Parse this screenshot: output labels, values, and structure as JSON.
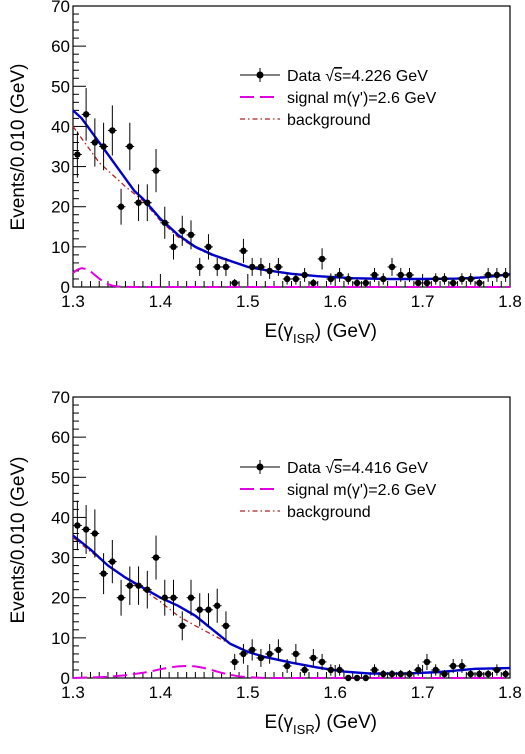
{
  "chart_data": [
    {
      "type": "scatter",
      "xlabel": "E(γ",
      "xlabel_sub": "ISR",
      "xlabel_tail": ") (GeV)",
      "ylabel": "Events/0.010 (GeV)",
      "xlim": [
        1.3,
        1.8
      ],
      "ylim": [
        0,
        70
      ],
      "x_ticks": [
        "1.3",
        "1.4",
        "1.5",
        "1.6",
        "1.7",
        "1.8"
      ],
      "y_ticks": [
        "0",
        "10",
        "20",
        "30",
        "40",
        "50",
        "60",
        "70"
      ],
      "legend": {
        "placement": "top-right",
        "entries": [
          {
            "label": "Data",
            "label_rest": "s=4.226 GeV",
            "kind": "data"
          },
          {
            "label": "signal m(γ')=2.6 GeV",
            "kind": "signal"
          },
          {
            "label": "background",
            "kind": "background"
          }
        ]
      },
      "colors": {
        "data": "#000000",
        "total": "#0000cc",
        "signal": "#e000e0",
        "background": "#b22222"
      },
      "series": [
        {
          "name": "Data",
          "kind": "data",
          "x": [
            1.305,
            1.315,
            1.325,
            1.335,
            1.345,
            1.355,
            1.365,
            1.375,
            1.385,
            1.395,
            1.405,
            1.415,
            1.425,
            1.435,
            1.445,
            1.455,
            1.465,
            1.475,
            1.485,
            1.495,
            1.505,
            1.515,
            1.525,
            1.535,
            1.545,
            1.555,
            1.565,
            1.575,
            1.585,
            1.595,
            1.605,
            1.615,
            1.625,
            1.635,
            1.645,
            1.655,
            1.665,
            1.675,
            1.685,
            1.695,
            1.705,
            1.715,
            1.725,
            1.735,
            1.745,
            1.755,
            1.765,
            1.775,
            1.785,
            1.795
          ],
          "y": [
            33,
            43,
            36,
            35,
            39,
            20,
            35,
            21,
            21,
            29,
            16,
            10,
            14,
            13,
            5,
            10,
            5,
            5,
            1,
            9,
            5,
            5,
            4,
            5,
            2,
            2,
            3,
            1,
            7,
            2,
            3,
            2,
            1,
            1,
            3,
            2,
            5,
            3,
            3,
            1,
            1,
            2,
            2,
            1,
            2,
            2,
            1,
            3,
            3,
            3
          ]
        },
        {
          "name": "",
          "kind": "total",
          "x": [
            1.3,
            1.31,
            1.32,
            1.33,
            1.34,
            1.35,
            1.36,
            1.37,
            1.38,
            1.39,
            1.4,
            1.42,
            1.44,
            1.46,
            1.48,
            1.5,
            1.52,
            1.55,
            1.58,
            1.62,
            1.66,
            1.7,
            1.74,
            1.77,
            1.8
          ],
          "y": [
            44,
            42,
            39,
            36,
            33,
            30,
            27,
            24,
            22,
            19.5,
            17,
            13,
            10,
            8,
            6.5,
            5,
            4.2,
            3.3,
            2.7,
            2.2,
            2.0,
            2.0,
            2.1,
            2.4,
            3.2
          ]
        },
        {
          "name": "",
          "kind": "signal",
          "x": [
            1.3,
            1.305,
            1.31,
            1.315,
            1.32,
            1.325,
            1.33,
            1.335,
            1.34,
            1.345,
            1.35,
            1.36,
            1.37,
            1.4,
            1.5,
            1.6,
            1.7,
            1.8
          ],
          "y": [
            3.5,
            4.3,
            4.7,
            4.5,
            3.9,
            3.0,
            2.1,
            1.3,
            0.7,
            0.35,
            0.15,
            0.03,
            0,
            0,
            0,
            0,
            0,
            0
          ]
        },
        {
          "name": "",
          "kind": "background",
          "x": [
            1.3,
            1.31,
            1.32,
            1.33,
            1.34,
            1.35,
            1.36,
            1.38,
            1.4,
            1.42,
            1.44,
            1.46,
            1.48,
            1.5,
            1.55,
            1.6,
            1.65,
            1.7,
            1.75,
            1.8
          ],
          "y": [
            40,
            37,
            34,
            31,
            29,
            27,
            25,
            21.5,
            16.5,
            12.5,
            9.8,
            7.8,
            6.3,
            5,
            3.3,
            2.4,
            2.0,
            2.0,
            2.3,
            3.0
          ]
        }
      ]
    },
    {
      "type": "scatter",
      "xlabel": "E(γ",
      "xlabel_sub": "ISR",
      "xlabel_tail": ") (GeV)",
      "ylabel": "Events/0.010 (GeV)",
      "xlim": [
        1.3,
        1.8
      ],
      "ylim": [
        0,
        70
      ],
      "x_ticks": [
        "1.3",
        "1.4",
        "1.5",
        "1.6",
        "1.7",
        "1.8"
      ],
      "y_ticks": [
        "0",
        "10",
        "20",
        "30",
        "40",
        "50",
        "60",
        "70"
      ],
      "legend": {
        "placement": "top-right",
        "entries": [
          {
            "label": "Data",
            "label_rest": "s=4.416 GeV",
            "kind": "data"
          },
          {
            "label": "signal m(γ')=2.6 GeV",
            "kind": "signal"
          },
          {
            "label": "background",
            "kind": "background"
          }
        ]
      },
      "colors": {
        "data": "#000000",
        "total": "#0000cc",
        "signal": "#e000e0",
        "background": "#b22222"
      },
      "series": [
        {
          "name": "Data",
          "kind": "data",
          "x": [
            1.305,
            1.315,
            1.325,
            1.335,
            1.345,
            1.355,
            1.365,
            1.375,
            1.385,
            1.395,
            1.405,
            1.415,
            1.425,
            1.435,
            1.445,
            1.455,
            1.465,
            1.475,
            1.485,
            1.495,
            1.505,
            1.515,
            1.525,
            1.535,
            1.545,
            1.555,
            1.565,
            1.575,
            1.585,
            1.595,
            1.605,
            1.615,
            1.625,
            1.635,
            1.645,
            1.655,
            1.665,
            1.675,
            1.685,
            1.695,
            1.705,
            1.715,
            1.725,
            1.735,
            1.745,
            1.755,
            1.765,
            1.775,
            1.785,
            1.795
          ],
          "y": [
            38,
            37,
            36,
            26,
            29,
            20,
            23,
            23,
            22,
            30,
            20,
            20,
            13,
            20,
            17,
            17,
            18,
            13,
            4,
            6,
            7,
            5,
            6,
            7,
            3,
            6,
            2,
            5,
            4,
            2,
            2,
            0,
            0,
            0,
            2,
            1,
            1,
            1,
            1,
            2,
            4,
            2,
            1,
            3,
            3,
            1,
            1,
            1,
            2,
            1
          ]
        },
        {
          "name": "",
          "kind": "total",
          "x": [
            1.3,
            1.32,
            1.34,
            1.36,
            1.38,
            1.4,
            1.42,
            1.44,
            1.46,
            1.48,
            1.5,
            1.52,
            1.55,
            1.58,
            1.61,
            1.64,
            1.68,
            1.72,
            1.76,
            1.8
          ],
          "y": [
            35.5,
            32,
            28,
            25,
            22.5,
            20,
            18,
            15.5,
            12,
            8.5,
            6.5,
            5.2,
            3.8,
            2.6,
            1.6,
            1.1,
            1.1,
            1.5,
            2.3,
            2.5
          ]
        },
        {
          "name": "",
          "kind": "signal",
          "x": [
            1.3,
            1.34,
            1.36,
            1.38,
            1.39,
            1.4,
            1.41,
            1.42,
            1.43,
            1.44,
            1.45,
            1.46,
            1.47,
            1.48,
            1.49,
            1.5,
            1.52,
            1.6,
            1.7,
            1.8
          ],
          "y": [
            0,
            0.3,
            0.7,
            1.3,
            1.7,
            2.2,
            2.6,
            2.9,
            3.0,
            2.9,
            2.5,
            1.9,
            1.3,
            0.8,
            0.4,
            0.2,
            0,
            0,
            0,
            0
          ]
        },
        {
          "name": "",
          "kind": "background",
          "x": [
            1.3,
            1.32,
            1.34,
            1.36,
            1.38,
            1.4,
            1.42,
            1.44,
            1.46,
            1.48,
            1.5,
            1.52,
            1.55,
            1.58,
            1.61,
            1.64,
            1.68,
            1.72,
            1.76,
            1.8
          ],
          "y": [
            35,
            31.5,
            28,
            25,
            22,
            19,
            15.5,
            13,
            10.7,
            8.5,
            6.5,
            5.2,
            3.8,
            2.6,
            1.6,
            1.1,
            1.1,
            1.5,
            2.3,
            2.5
          ]
        }
      ]
    }
  ]
}
